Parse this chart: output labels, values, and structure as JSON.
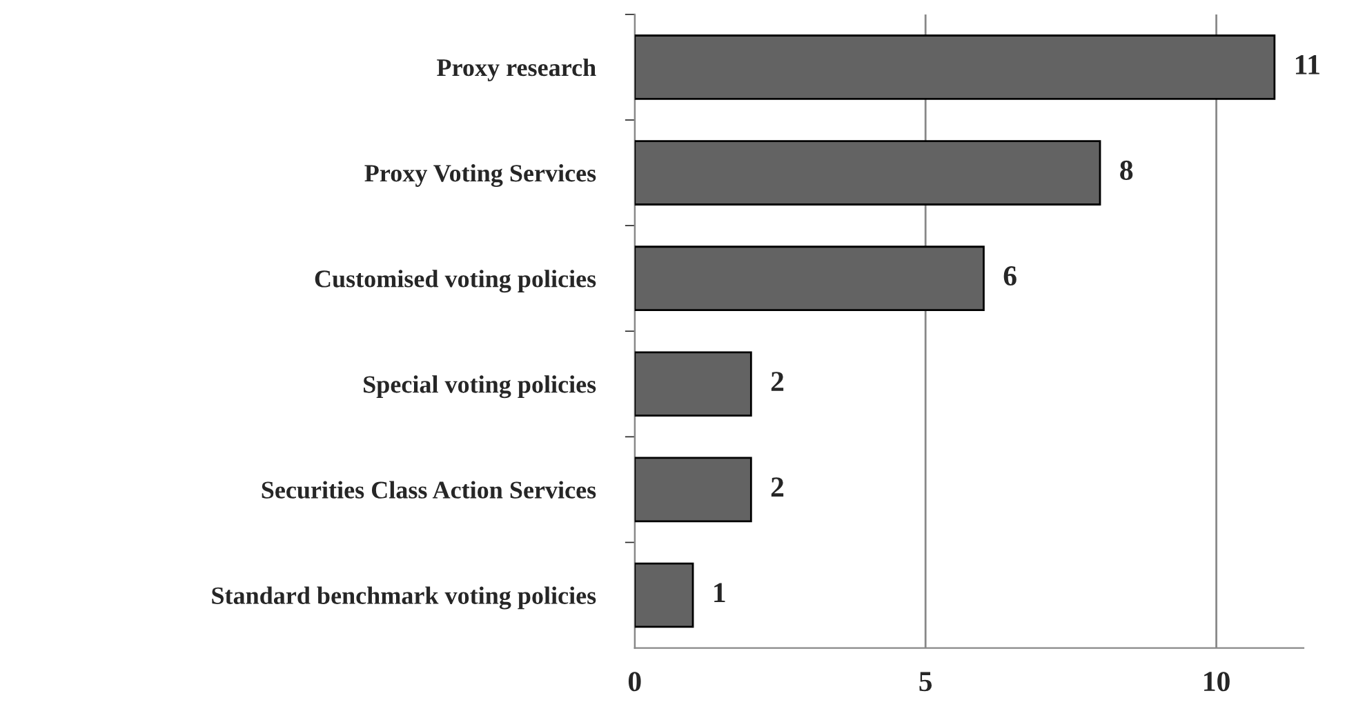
{
  "chart_data": {
    "type": "bar",
    "orientation": "horizontal",
    "categories": [
      "Proxy research",
      "Proxy Voting Services",
      "Customised voting policies",
      "Special voting policies",
      "Securities Class Action Services",
      "Standard benchmark voting policies"
    ],
    "values": [
      11,
      8,
      6,
      2,
      2,
      1
    ],
    "color": "#636363",
    "xlim": [
      0,
      11.5
    ],
    "xticks": [
      0,
      5,
      10
    ],
    "grid": "x",
    "data_labels": true
  }
}
